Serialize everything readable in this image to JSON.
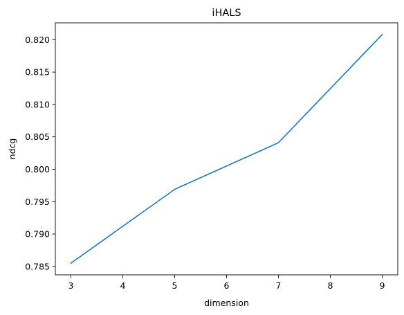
{
  "chart_data": {
    "type": "line",
    "title": "iHALS",
    "xlabel": "dimension",
    "ylabel": "ndcg",
    "x": [
      3,
      5,
      7,
      9
    ],
    "series": [
      {
        "values": [
          0.7855,
          0.7969,
          0.8041,
          0.8208
        ],
        "color": "#1f77b4"
      }
    ],
    "xlim": [
      2.7,
      9.3
    ],
    "ylim": [
      0.7837,
      0.8226
    ],
    "xticks": [
      "3",
      "4",
      "5",
      "6",
      "7",
      "8",
      "9"
    ],
    "yticks": [
      "0.785",
      "0.790",
      "0.795",
      "0.800",
      "0.805",
      "0.810",
      "0.815",
      "0.820"
    ],
    "grid": false,
    "legend": "none"
  }
}
